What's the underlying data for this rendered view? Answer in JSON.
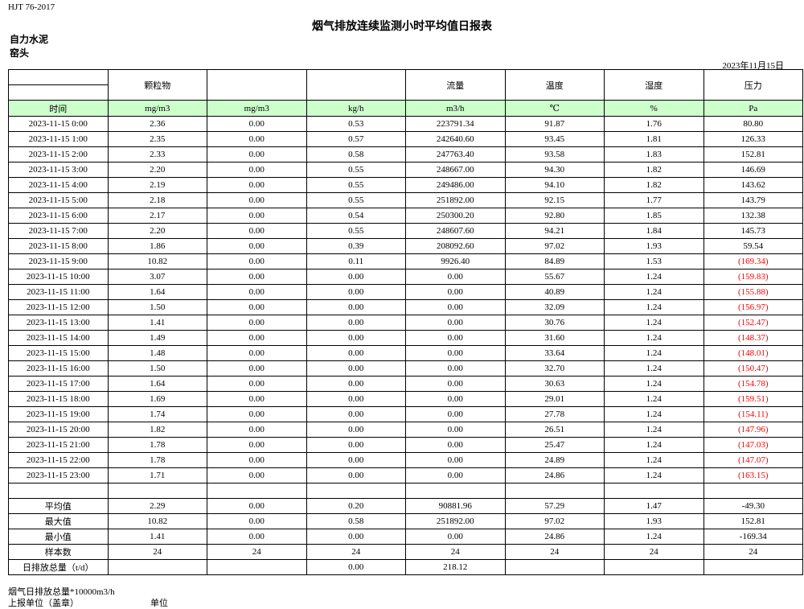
{
  "standard": "HJT  76-2017",
  "title": "烟气排放连续监测小时平均值日报表",
  "company": "自力水泥",
  "unit": "窑头",
  "date": "2023年11月15日",
  "headers": [
    "",
    "颗粒物",
    "",
    "",
    "流量",
    "温度",
    "湿度",
    "压力"
  ],
  "units": [
    "时间",
    "mg/m3",
    "mg/m3",
    "kg/h",
    "m3/h",
    "℃",
    "%",
    "Pa"
  ],
  "rows": [
    [
      "2023-11-15 0:00",
      "2.36",
      "0.00",
      "0.53",
      "223791.34",
      "91.87",
      "1.76",
      "80.80"
    ],
    [
      "2023-11-15 1:00",
      "2.35",
      "0.00",
      "0.57",
      "242640.60",
      "93.45",
      "1.81",
      "126.33"
    ],
    [
      "2023-11-15 2:00",
      "2.33",
      "0.00",
      "0.58",
      "247763.40",
      "93.58",
      "1.83",
      "152.81"
    ],
    [
      "2023-11-15 3:00",
      "2.20",
      "0.00",
      "0.55",
      "248667.00",
      "94.30",
      "1.82",
      "146.69"
    ],
    [
      "2023-11-15 4:00",
      "2.19",
      "0.00",
      "0.55",
      "249486.00",
      "94.10",
      "1.82",
      "143.62"
    ],
    [
      "2023-11-15 5:00",
      "2.18",
      "0.00",
      "0.55",
      "251892.00",
      "92.15",
      "1.77",
      "143.79"
    ],
    [
      "2023-11-15 6:00",
      "2.17",
      "0.00",
      "0.54",
      "250300.20",
      "92.80",
      "1.85",
      "132.38"
    ],
    [
      "2023-11-15 7:00",
      "2.20",
      "0.00",
      "0.55",
      "248607.60",
      "94.21",
      "1.84",
      "145.73"
    ],
    [
      "2023-11-15 8:00",
      "1.86",
      "0.00",
      "0.39",
      "208092.60",
      "97.02",
      "1.93",
      "59.54"
    ],
    [
      "2023-11-15 9:00",
      "10.82",
      "0.00",
      "0.11",
      "9926.40",
      "84.89",
      "1.53",
      "(169.34)"
    ],
    [
      "2023-11-15 10:00",
      "3.07",
      "0.00",
      "0.00",
      "0.00",
      "55.67",
      "1.24",
      "(159.83)"
    ],
    [
      "2023-11-15 11:00",
      "1.64",
      "0.00",
      "0.00",
      "0.00",
      "40.89",
      "1.24",
      "(155.88)"
    ],
    [
      "2023-11-15 12:00",
      "1.50",
      "0.00",
      "0.00",
      "0.00",
      "32.09",
      "1.24",
      "(156.97)"
    ],
    [
      "2023-11-15 13:00",
      "1.41",
      "0.00",
      "0.00",
      "0.00",
      "30.76",
      "1.24",
      "(152.47)"
    ],
    [
      "2023-11-15 14:00",
      "1.49",
      "0.00",
      "0.00",
      "0.00",
      "31.60",
      "1.24",
      "(148.37)"
    ],
    [
      "2023-11-15 15:00",
      "1.48",
      "0.00",
      "0.00",
      "0.00",
      "33.64",
      "1.24",
      "(148.01)"
    ],
    [
      "2023-11-15 16:00",
      "1.50",
      "0.00",
      "0.00",
      "0.00",
      "32.70",
      "1.24",
      "(150.47)"
    ],
    [
      "2023-11-15 17:00",
      "1.64",
      "0.00",
      "0.00",
      "0.00",
      "30.63",
      "1.24",
      "(154.78)"
    ],
    [
      "2023-11-15 18:00",
      "1.69",
      "0.00",
      "0.00",
      "0.00",
      "29.01",
      "1.24",
      "(159.51)"
    ],
    [
      "2023-11-15 19:00",
      "1.74",
      "0.00",
      "0.00",
      "0.00",
      "27.78",
      "1.24",
      "(154.11)"
    ],
    [
      "2023-11-15 20:00",
      "1.82",
      "0.00",
      "0.00",
      "0.00",
      "26.51",
      "1.24",
      "(147.96)"
    ],
    [
      "2023-11-15 21:00",
      "1.78",
      "0.00",
      "0.00",
      "0.00",
      "25.47",
      "1.24",
      "(147.03)"
    ],
    [
      "2023-11-15 22:00",
      "1.78",
      "0.00",
      "0.00",
      "0.00",
      "24.89",
      "1.24",
      "(147.07)"
    ],
    [
      "2023-11-15 23:00",
      "1.71",
      "0.00",
      "0.00",
      "0.00",
      "24.86",
      "1.24",
      "(163.15)"
    ]
  ],
  "summary": [
    [
      "平均值",
      "2.29",
      "0.00",
      "0.20",
      "90881.96",
      "57.29",
      "1.47",
      "-49.30"
    ],
    [
      "最大值",
      "10.82",
      "0.00",
      "0.58",
      "251892.00",
      "97.02",
      "1.93",
      "152.81"
    ],
    [
      "最小值",
      "1.41",
      "0.00",
      "0.00",
      "0.00",
      "24.86",
      "1.24",
      "-169.34"
    ],
    [
      "样本数",
      "24",
      "24",
      "24",
      "24",
      "24",
      "24",
      "24"
    ],
    [
      "日排放总量（t/d）",
      "",
      "",
      "0.00",
      "218.12",
      "",
      "",
      ""
    ]
  ],
  "negative_color": "#ff0000",
  "unit_row_color": "#ccffcc",
  "footer": {
    "note": "烟气日排放总量*10000m3/h",
    "reporter": "上报单位（盖章）",
    "reporter_unit": "单位"
  }
}
